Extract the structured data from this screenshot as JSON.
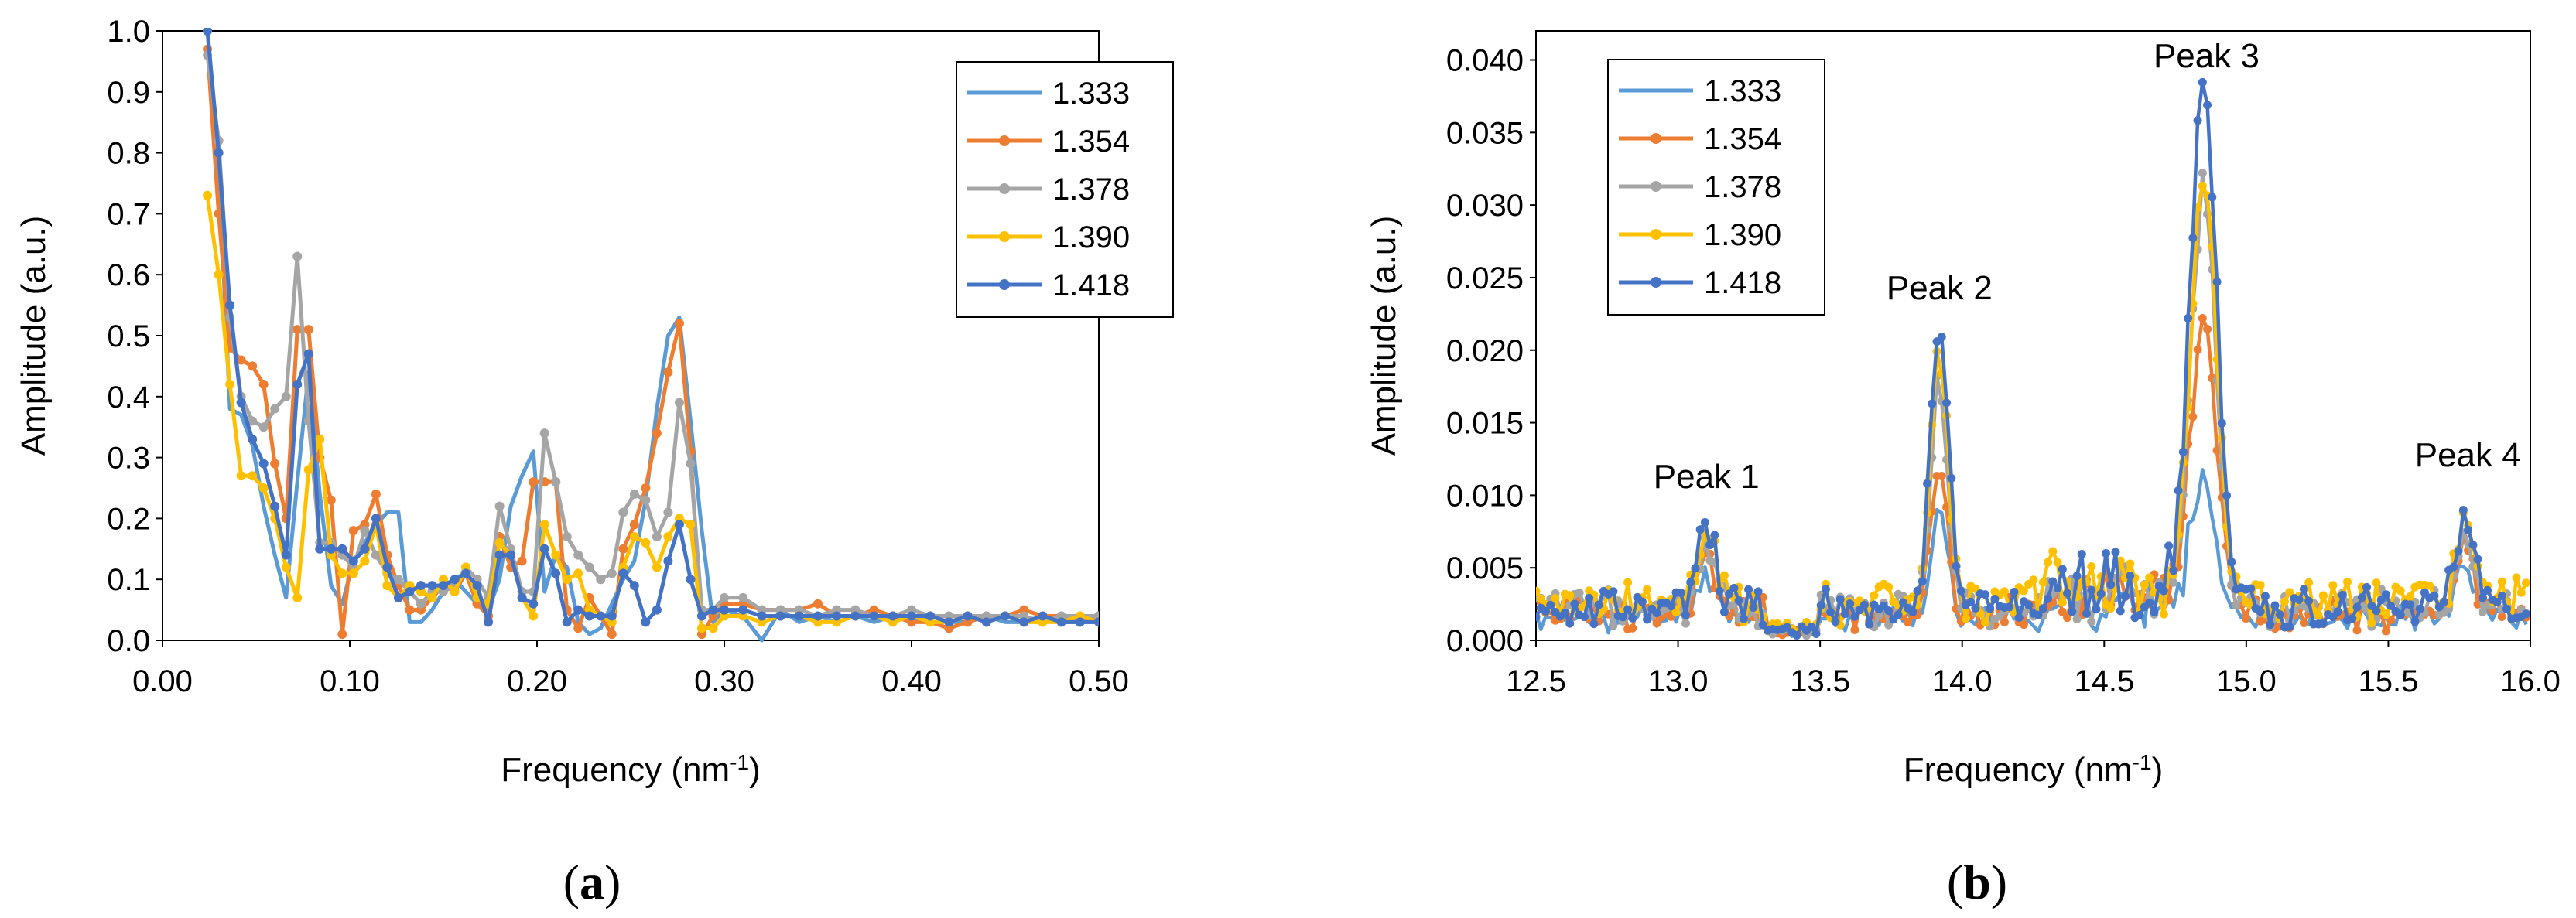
{
  "colors": {
    "1.333": "#5B9BD5",
    "1.354": "#ED7D31",
    "1.378": "#A5A5A5",
    "1.390": "#FFC000",
    "1.418": "#4472C4",
    "axis": "#000000",
    "grid": "#bfbfbf"
  },
  "chart_data": [
    {
      "id": "a",
      "type": "line",
      "caption": "a",
      "xlabel": "Frequency (nm",
      "xlabel_sup": "-1",
      "xlabel_end": ")",
      "ylabel": "Amplitude (a.u.)",
      "xlim": [
        0,
        0.5
      ],
      "ylim": [
        0,
        1.0
      ],
      "xticks": [
        "0.00",
        "0.10",
        "0.20",
        "0.30",
        "0.40",
        "0.50"
      ],
      "xtick_values": [
        0,
        0.1,
        0.2,
        0.3,
        0.4,
        0.5
      ],
      "yticks": [
        "0.0",
        "0.1",
        "0.2",
        "0.3",
        "0.4",
        "0.5",
        "0.6",
        "0.7",
        "0.8",
        "0.9",
        "1.0"
      ],
      "ytick_values": [
        0,
        0.1,
        0.2,
        0.3,
        0.4,
        0.5,
        0.6,
        0.7,
        0.8,
        0.9,
        1.0
      ],
      "legend_position": "top-right",
      "x": [
        0.024,
        0.03,
        0.036,
        0.042,
        0.048,
        0.054,
        0.06,
        0.066,
        0.072,
        0.078,
        0.084,
        0.09,
        0.096,
        0.102,
        0.108,
        0.114,
        0.12,
        0.126,
        0.132,
        0.138,
        0.144,
        0.15,
        0.156,
        0.162,
        0.168,
        0.174,
        0.18,
        0.186,
        0.192,
        0.198,
        0.204,
        0.21,
        0.216,
        0.222,
        0.228,
        0.234,
        0.24,
        0.246,
        0.252,
        0.258,
        0.264,
        0.27,
        0.276,
        0.282,
        0.288,
        0.294,
        0.3,
        0.31,
        0.32,
        0.33,
        0.34,
        0.35,
        0.36,
        0.37,
        0.38,
        0.39,
        0.4,
        0.41,
        0.42,
        0.43,
        0.44,
        0.45,
        0.46,
        0.47,
        0.48,
        0.49,
        0.5
      ],
      "series": [
        {
          "name": "1.333",
          "markers": false,
          "values": [
            1.0,
            0.78,
            0.38,
            0.37,
            0.32,
            0.22,
            0.14,
            0.07,
            0.26,
            0.44,
            0.24,
            0.09,
            0.06,
            0.13,
            0.16,
            0.19,
            0.21,
            0.21,
            0.03,
            0.03,
            0.05,
            0.08,
            0.1,
            0.08,
            0.06,
            0.05,
            0.1,
            0.22,
            0.27,
            0.31,
            0.08,
            0.14,
            0.12,
            0.03,
            0.01,
            0.02,
            0.06,
            0.1,
            0.13,
            0.23,
            0.38,
            0.5,
            0.53,
            0.36,
            0.18,
            0.03,
            0.05,
            0.04,
            0.0,
            0.05,
            0.03,
            0.04,
            0.03,
            0.04,
            0.03,
            0.04,
            0.03,
            0.04,
            0.03,
            0.03,
            0.04,
            0.03,
            0.03,
            0.04,
            0.03,
            0.03,
            0.03
          ]
        },
        {
          "name": "1.354",
          "markers": true,
          "values": [
            0.97,
            0.7,
            0.48,
            0.46,
            0.45,
            0.42,
            0.29,
            0.2,
            0.51,
            0.51,
            0.3,
            0.23,
            0.01,
            0.18,
            0.19,
            0.24,
            0.14,
            0.09,
            0.05,
            0.05,
            0.07,
            0.09,
            0.08,
            0.11,
            0.06,
            0.04,
            0.17,
            0.12,
            0.13,
            0.26,
            0.26,
            0.26,
            0.05,
            0.02,
            0.07,
            0.04,
            0.01,
            0.15,
            0.19,
            0.25,
            0.34,
            0.44,
            0.52,
            0.31,
            0.01,
            0.04,
            0.06,
            0.06,
            0.05,
            0.05,
            0.05,
            0.06,
            0.04,
            0.04,
            0.05,
            0.04,
            0.03,
            0.03,
            0.02,
            0.03,
            0.04,
            0.04,
            0.05,
            0.04,
            0.04,
            0.03,
            0.04
          ]
        },
        {
          "name": "1.378",
          "markers": true,
          "values": [
            0.96,
            0.82,
            0.53,
            0.4,
            0.36,
            0.35,
            0.38,
            0.4,
            0.63,
            0.36,
            0.16,
            0.16,
            0.14,
            0.12,
            0.18,
            0.14,
            0.11,
            0.1,
            0.08,
            0.06,
            0.08,
            0.08,
            0.09,
            0.12,
            0.1,
            0.07,
            0.22,
            0.15,
            0.08,
            0.08,
            0.34,
            0.26,
            0.17,
            0.14,
            0.12,
            0.1,
            0.11,
            0.21,
            0.24,
            0.23,
            0.17,
            0.21,
            0.39,
            0.29,
            0.05,
            0.05,
            0.07,
            0.07,
            0.05,
            0.05,
            0.05,
            0.04,
            0.05,
            0.05,
            0.04,
            0.04,
            0.05,
            0.04,
            0.04,
            0.04,
            0.04,
            0.04,
            0.04,
            0.03,
            0.04,
            0.04,
            0.04
          ]
        },
        {
          "name": "1.390",
          "markers": true,
          "values": [
            0.73,
            0.6,
            0.42,
            0.27,
            0.27,
            0.25,
            0.2,
            0.12,
            0.07,
            0.28,
            0.33,
            0.14,
            0.11,
            0.11,
            0.13,
            0.19,
            0.09,
            0.07,
            0.09,
            0.08,
            0.07,
            0.1,
            0.08,
            0.12,
            0.07,
            0.06,
            0.16,
            0.14,
            0.07,
            0.04,
            0.19,
            0.14,
            0.1,
            0.11,
            0.05,
            0.04,
            0.03,
            0.12,
            0.17,
            0.16,
            0.12,
            0.17,
            0.2,
            0.19,
            0.02,
            0.02,
            0.04,
            0.04,
            0.03,
            0.04,
            0.04,
            0.03,
            0.03,
            0.04,
            0.04,
            0.03,
            0.04,
            0.03,
            0.03,
            0.04,
            0.03,
            0.04,
            0.03,
            0.03,
            0.03,
            0.04,
            0.03
          ]
        },
        {
          "name": "1.418",
          "markers": true,
          "values": [
            1.0,
            0.8,
            0.55,
            0.39,
            0.33,
            0.29,
            0.22,
            0.14,
            0.42,
            0.47,
            0.15,
            0.15,
            0.15,
            0.13,
            0.15,
            0.2,
            0.12,
            0.07,
            0.08,
            0.09,
            0.09,
            0.09,
            0.1,
            0.11,
            0.09,
            0.03,
            0.14,
            0.14,
            0.07,
            0.06,
            0.15,
            0.11,
            0.03,
            0.05,
            0.04,
            0.04,
            0.04,
            0.11,
            0.09,
            0.03,
            0.05,
            0.13,
            0.19,
            0.1,
            0.04,
            0.05,
            0.05,
            0.05,
            0.04,
            0.04,
            0.04,
            0.04,
            0.04,
            0.04,
            0.04,
            0.04,
            0.04,
            0.04,
            0.03,
            0.04,
            0.03,
            0.04,
            0.03,
            0.04,
            0.03,
            0.03,
            0.03
          ]
        }
      ]
    },
    {
      "id": "b",
      "type": "line",
      "caption": "b",
      "xlabel": "Frequency (nm",
      "xlabel_sup": "-1",
      "xlabel_end": ")",
      "ylabel": "Amplitude (a.u.)",
      "xlim": [
        12.5,
        16.0
      ],
      "ylim": [
        0,
        0.042
      ],
      "xticks": [
        "12.5",
        "13.0",
        "13.5",
        "14.0",
        "14.5",
        "15.0",
        "15.5",
        "16.0"
      ],
      "xtick_values": [
        12.5,
        13.0,
        13.5,
        14.0,
        14.5,
        15.0,
        15.5,
        16.0
      ],
      "yticks": [
        "0.000",
        "0.005",
        "0.010",
        "0.015",
        "0.020",
        "0.025",
        "0.030",
        "0.035",
        "0.040"
      ],
      "ytick_values": [
        0,
        0.005,
        0.01,
        0.015,
        0.02,
        0.025,
        0.03,
        0.035,
        0.04
      ],
      "legend_position": "top-left",
      "annotations": [
        {
          "text": "Peak 1",
          "x": 13.1,
          "y": 0.0105
        },
        {
          "text": "Peak 2",
          "x": 13.92,
          "y": 0.0235
        },
        {
          "text": "Peak 3",
          "x": 14.86,
          "y": 0.0395
        },
        {
          "text": "Peak 4",
          "x": 15.78,
          "y": 0.012
        }
      ],
      "peaks": [
        {
          "center": 13.1,
          "width": 0.035
        },
        {
          "center": 13.92,
          "width": 0.03
        },
        {
          "center": 14.85,
          "width": 0.045
        },
        {
          "center": 15.77,
          "width": 0.03
        }
      ],
      "series": [
        {
          "name": "1.333",
          "markers": false,
          "base": 0.0014,
          "noise": 0.0012,
          "peak_heights": [
            0.003,
            0.0075,
            0.0095,
            0.0035
          ],
          "seed": 11
        },
        {
          "name": "1.354",
          "markers": true,
          "base": 0.0016,
          "noise": 0.0016,
          "peak_heights": [
            0.0035,
            0.011,
            0.0205,
            0.0055
          ],
          "seed": 23
        },
        {
          "name": "1.378",
          "markers": true,
          "base": 0.002,
          "noise": 0.0016,
          "peak_heights": [
            0.004,
            0.016,
            0.029,
            0.005
          ],
          "seed": 37
        },
        {
          "name": "1.390",
          "markers": true,
          "base": 0.0025,
          "noise": 0.0017,
          "peak_heights": [
            0.0042,
            0.017,
            0.03,
            0.0055
          ],
          "seed": 41
        },
        {
          "name": "1.418",
          "markers": true,
          "base": 0.002,
          "noise": 0.002,
          "peak_heights": [
            0.005,
            0.02,
            0.0365,
            0.0065
          ],
          "seed": 53
        }
      ]
    }
  ]
}
